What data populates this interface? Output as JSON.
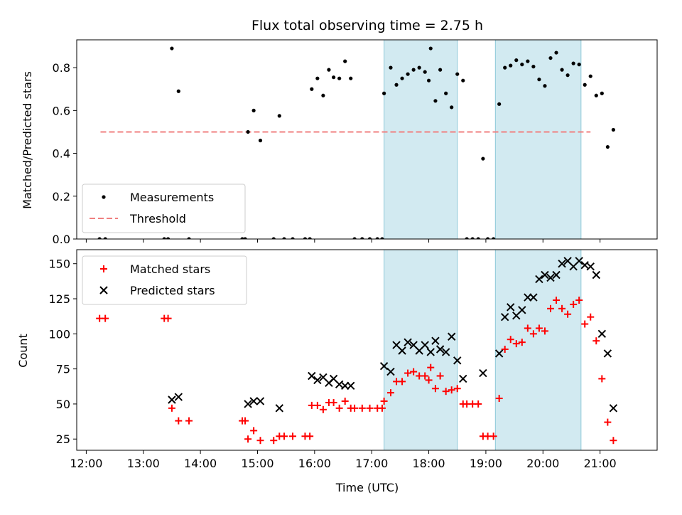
{
  "chart_data": [
    {
      "type": "scatter",
      "title": "Flux total observing time = 2.75 h",
      "xlabel": "",
      "ylabel": "Matched/Predicted stars",
      "ylim": [
        0,
        0.93
      ],
      "yticks": [
        "0.0",
        "0.2",
        "0.4",
        "0.6",
        "0.8"
      ],
      "xlim": [
        "11:50",
        "22:00"
      ],
      "legend_position": "lower-left",
      "shaded_intervals": [
        [
          "17:13",
          "18:30"
        ],
        [
          "19:10",
          "20:40"
        ]
      ],
      "shade_color": "#add8e6",
      "threshold": {
        "name": "Threshold",
        "value": 0.5,
        "x_start": "12:15",
        "x_end": "20:50",
        "color": "#f08080"
      },
      "series": [
        {
          "name": "Measurements",
          "color": "#000000",
          "points": [
            [
              "12:14",
              0
            ],
            [
              "12:20",
              0
            ],
            [
              "13:22",
              0
            ],
            [
              "13:26",
              0
            ],
            [
              "13:30",
              0.89
            ],
            [
              "13:37",
              0.69
            ],
            [
              "13:48",
              0
            ],
            [
              "14:44",
              0
            ],
            [
              "14:47",
              0
            ],
            [
              "14:50",
              0.5
            ],
            [
              "14:56",
              0.6
            ],
            [
              "15:03",
              0.46
            ],
            [
              "15:17",
              0
            ],
            [
              "15:23",
              0.575
            ],
            [
              "15:28",
              0
            ],
            [
              "15:37",
              0
            ],
            [
              "15:50",
              0
            ],
            [
              "15:55",
              0
            ],
            [
              "15:57",
              0.7
            ],
            [
              "16:03",
              0.75
            ],
            [
              "16:09",
              0.67
            ],
            [
              "16:15",
              0.79
            ],
            [
              "16:20",
              0.755
            ],
            [
              "16:26",
              0.75
            ],
            [
              "16:32",
              0.83
            ],
            [
              "16:38",
              0.75
            ],
            [
              "16:42",
              0
            ],
            [
              "16:50",
              0
            ],
            [
              "16:58",
              0
            ],
            [
              "17:06",
              0
            ],
            [
              "17:11",
              0
            ],
            [
              "17:13",
              0.68
            ],
            [
              "17:20",
              0.8
            ],
            [
              "17:26",
              0.72
            ],
            [
              "17:32",
              0.75
            ],
            [
              "17:38",
              0.77
            ],
            [
              "17:44",
              0.79
            ],
            [
              "17:50",
              0.8
            ],
            [
              "17:56",
              0.78
            ],
            [
              "18:00",
              0.74
            ],
            [
              "18:02",
              0.89
            ],
            [
              "18:07",
              0.645
            ],
            [
              "18:12",
              0.79
            ],
            [
              "18:18",
              0.68
            ],
            [
              "18:24",
              0.615
            ],
            [
              "18:30",
              0.77
            ],
            [
              "18:36",
              0.74
            ],
            [
              "18:40",
              0
            ],
            [
              "18:46",
              0
            ],
            [
              "18:52",
              0
            ],
            [
              "18:57",
              0.375
            ],
            [
              "19:02",
              0
            ],
            [
              "19:08",
              0
            ],
            [
              "19:14",
              0.63
            ],
            [
              "19:20",
              0.8
            ],
            [
              "19:26",
              0.81
            ],
            [
              "19:32",
              0.835
            ],
            [
              "19:38",
              0.815
            ],
            [
              "19:44",
              0.83
            ],
            [
              "19:50",
              0.805
            ],
            [
              "19:56",
              0.745
            ],
            [
              "20:02",
              0.715
            ],
            [
              "20:08",
              0.845
            ],
            [
              "20:14",
              0.87
            ],
            [
              "20:20",
              0.79
            ],
            [
              "20:26",
              0.765
            ],
            [
              "20:32",
              0.82
            ],
            [
              "20:38",
              0.815
            ],
            [
              "20:44",
              0.72
            ],
            [
              "20:50",
              0.76
            ],
            [
              "20:56",
              0.67
            ],
            [
              "21:02",
              0.68
            ],
            [
              "21:08",
              0.43
            ],
            [
              "21:14",
              0.51
            ]
          ]
        }
      ]
    },
    {
      "type": "scatter",
      "title": "",
      "xlabel": "Time (UTC)",
      "ylabel": "Count",
      "ylim": [
        17,
        160
      ],
      "yticks": [
        "25",
        "50",
        "75",
        "100",
        "125",
        "150"
      ],
      "xlim": [
        "11:50",
        "22:00"
      ],
      "xticks": [
        "12:00",
        "13:00",
        "14:00",
        "15:00",
        "16:00",
        "17:00",
        "18:00",
        "19:00",
        "20:00",
        "21:00"
      ],
      "legend_position": "upper-left",
      "shaded_intervals": [
        [
          "17:13",
          "18:30"
        ],
        [
          "19:10",
          "20:40"
        ]
      ],
      "shade_color": "#add8e6",
      "series": [
        {
          "name": "Matched stars",
          "marker": "plus",
          "color": "#ff0000",
          "points": [
            [
              "12:14",
              111
            ],
            [
              "12:20",
              111
            ],
            [
              "13:22",
              111
            ],
            [
              "13:26",
              111
            ],
            [
              "13:30",
              47
            ],
            [
              "13:37",
              38
            ],
            [
              "13:48",
              38
            ],
            [
              "14:44",
              38
            ],
            [
              "14:47",
              38
            ],
            [
              "14:50",
              25
            ],
            [
              "14:56",
              31
            ],
            [
              "15:03",
              24
            ],
            [
              "15:17",
              24
            ],
            [
              "15:23",
              27
            ],
            [
              "15:28",
              27
            ],
            [
              "15:37",
              27
            ],
            [
              "15:50",
              27
            ],
            [
              "15:55",
              27
            ],
            [
              "15:57",
              49
            ],
            [
              "16:03",
              49
            ],
            [
              "16:09",
              46
            ],
            [
              "16:15",
              51
            ],
            [
              "16:20",
              51
            ],
            [
              "16:26",
              47
            ],
            [
              "16:32",
              52
            ],
            [
              "16:38",
              47
            ],
            [
              "16:42",
              47
            ],
            [
              "16:50",
              47
            ],
            [
              "16:58",
              47
            ],
            [
              "17:06",
              47
            ],
            [
              "17:11",
              47
            ],
            [
              "17:13",
              52
            ],
            [
              "17:20",
              58
            ],
            [
              "17:26",
              66
            ],
            [
              "17:32",
              66
            ],
            [
              "17:38",
              72
            ],
            [
              "17:44",
              73
            ],
            [
              "17:50",
              70
            ],
            [
              "17:56",
              70
            ],
            [
              "18:00",
              67
            ],
            [
              "18:02",
              76
            ],
            [
              "18:07",
              61
            ],
            [
              "18:12",
              70
            ],
            [
              "18:18",
              59
            ],
            [
              "18:24",
              60
            ],
            [
              "18:30",
              61
            ],
            [
              "18:36",
              50
            ],
            [
              "18:40",
              50
            ],
            [
              "18:46",
              50
            ],
            [
              "18:52",
              50
            ],
            [
              "18:57",
              27
            ],
            [
              "19:02",
              27
            ],
            [
              "19:08",
              27
            ],
            [
              "19:14",
              54
            ],
            [
              "19:20",
              89
            ],
            [
              "19:26",
              96
            ],
            [
              "19:32",
              93
            ],
            [
              "19:38",
              94
            ],
            [
              "19:44",
              104
            ],
            [
              "19:50",
              100
            ],
            [
              "19:56",
              104
            ],
            [
              "20:02",
              102
            ],
            [
              "20:08",
              118
            ],
            [
              "20:14",
              124
            ],
            [
              "20:20",
              118
            ],
            [
              "20:26",
              114
            ],
            [
              "20:32",
              121
            ],
            [
              "20:38",
              124
            ],
            [
              "20:44",
              107
            ],
            [
              "20:50",
              112
            ],
            [
              "20:56",
              95
            ],
            [
              "21:02",
              68
            ],
            [
              "21:08",
              37
            ],
            [
              "21:14",
              24
            ]
          ]
        },
        {
          "name": "Predicted stars",
          "marker": "x",
          "color": "#000000",
          "points": [
            [
              "13:30",
              53
            ],
            [
              "13:37",
              55
            ],
            [
              "14:50",
              50
            ],
            [
              "14:56",
              52
            ],
            [
              "15:03",
              52
            ],
            [
              "15:23",
              47
            ],
            [
              "15:57",
              70
            ],
            [
              "16:03",
              67
            ],
            [
              "16:09",
              69
            ],
            [
              "16:15",
              65
            ],
            [
              "16:20",
              68
            ],
            [
              "16:26",
              64
            ],
            [
              "16:32",
              63
            ],
            [
              "16:38",
              63
            ],
            [
              "17:13",
              77
            ],
            [
              "17:20",
              73
            ],
            [
              "17:26",
              92
            ],
            [
              "17:32",
              88
            ],
            [
              "17:38",
              94
            ],
            [
              "17:44",
              92
            ],
            [
              "17:50",
              88
            ],
            [
              "17:56",
              92
            ],
            [
              "18:02",
              87
            ],
            [
              "18:07",
              95
            ],
            [
              "18:12",
              89
            ],
            [
              "18:18",
              87
            ],
            [
              "18:24",
              98
            ],
            [
              "18:30",
              81
            ],
            [
              "18:36",
              68
            ],
            [
              "18:57",
              72
            ],
            [
              "19:14",
              86
            ],
            [
              "19:20",
              112
            ],
            [
              "19:26",
              119
            ],
            [
              "19:32",
              113
            ],
            [
              "19:38",
              117
            ],
            [
              "19:44",
              126
            ],
            [
              "19:50",
              126
            ],
            [
              "19:56",
              139
            ],
            [
              "20:02",
              142
            ],
            [
              "20:08",
              140
            ],
            [
              "20:14",
              142
            ],
            [
              "20:20",
              150
            ],
            [
              "20:26",
              152
            ],
            [
              "20:32",
              148
            ],
            [
              "20:38",
              152
            ],
            [
              "20:44",
              149
            ],
            [
              "20:50",
              148
            ],
            [
              "20:56",
              142
            ],
            [
              "21:02",
              100
            ],
            [
              "21:08",
              86
            ],
            [
              "21:14",
              47
            ]
          ]
        }
      ]
    }
  ]
}
